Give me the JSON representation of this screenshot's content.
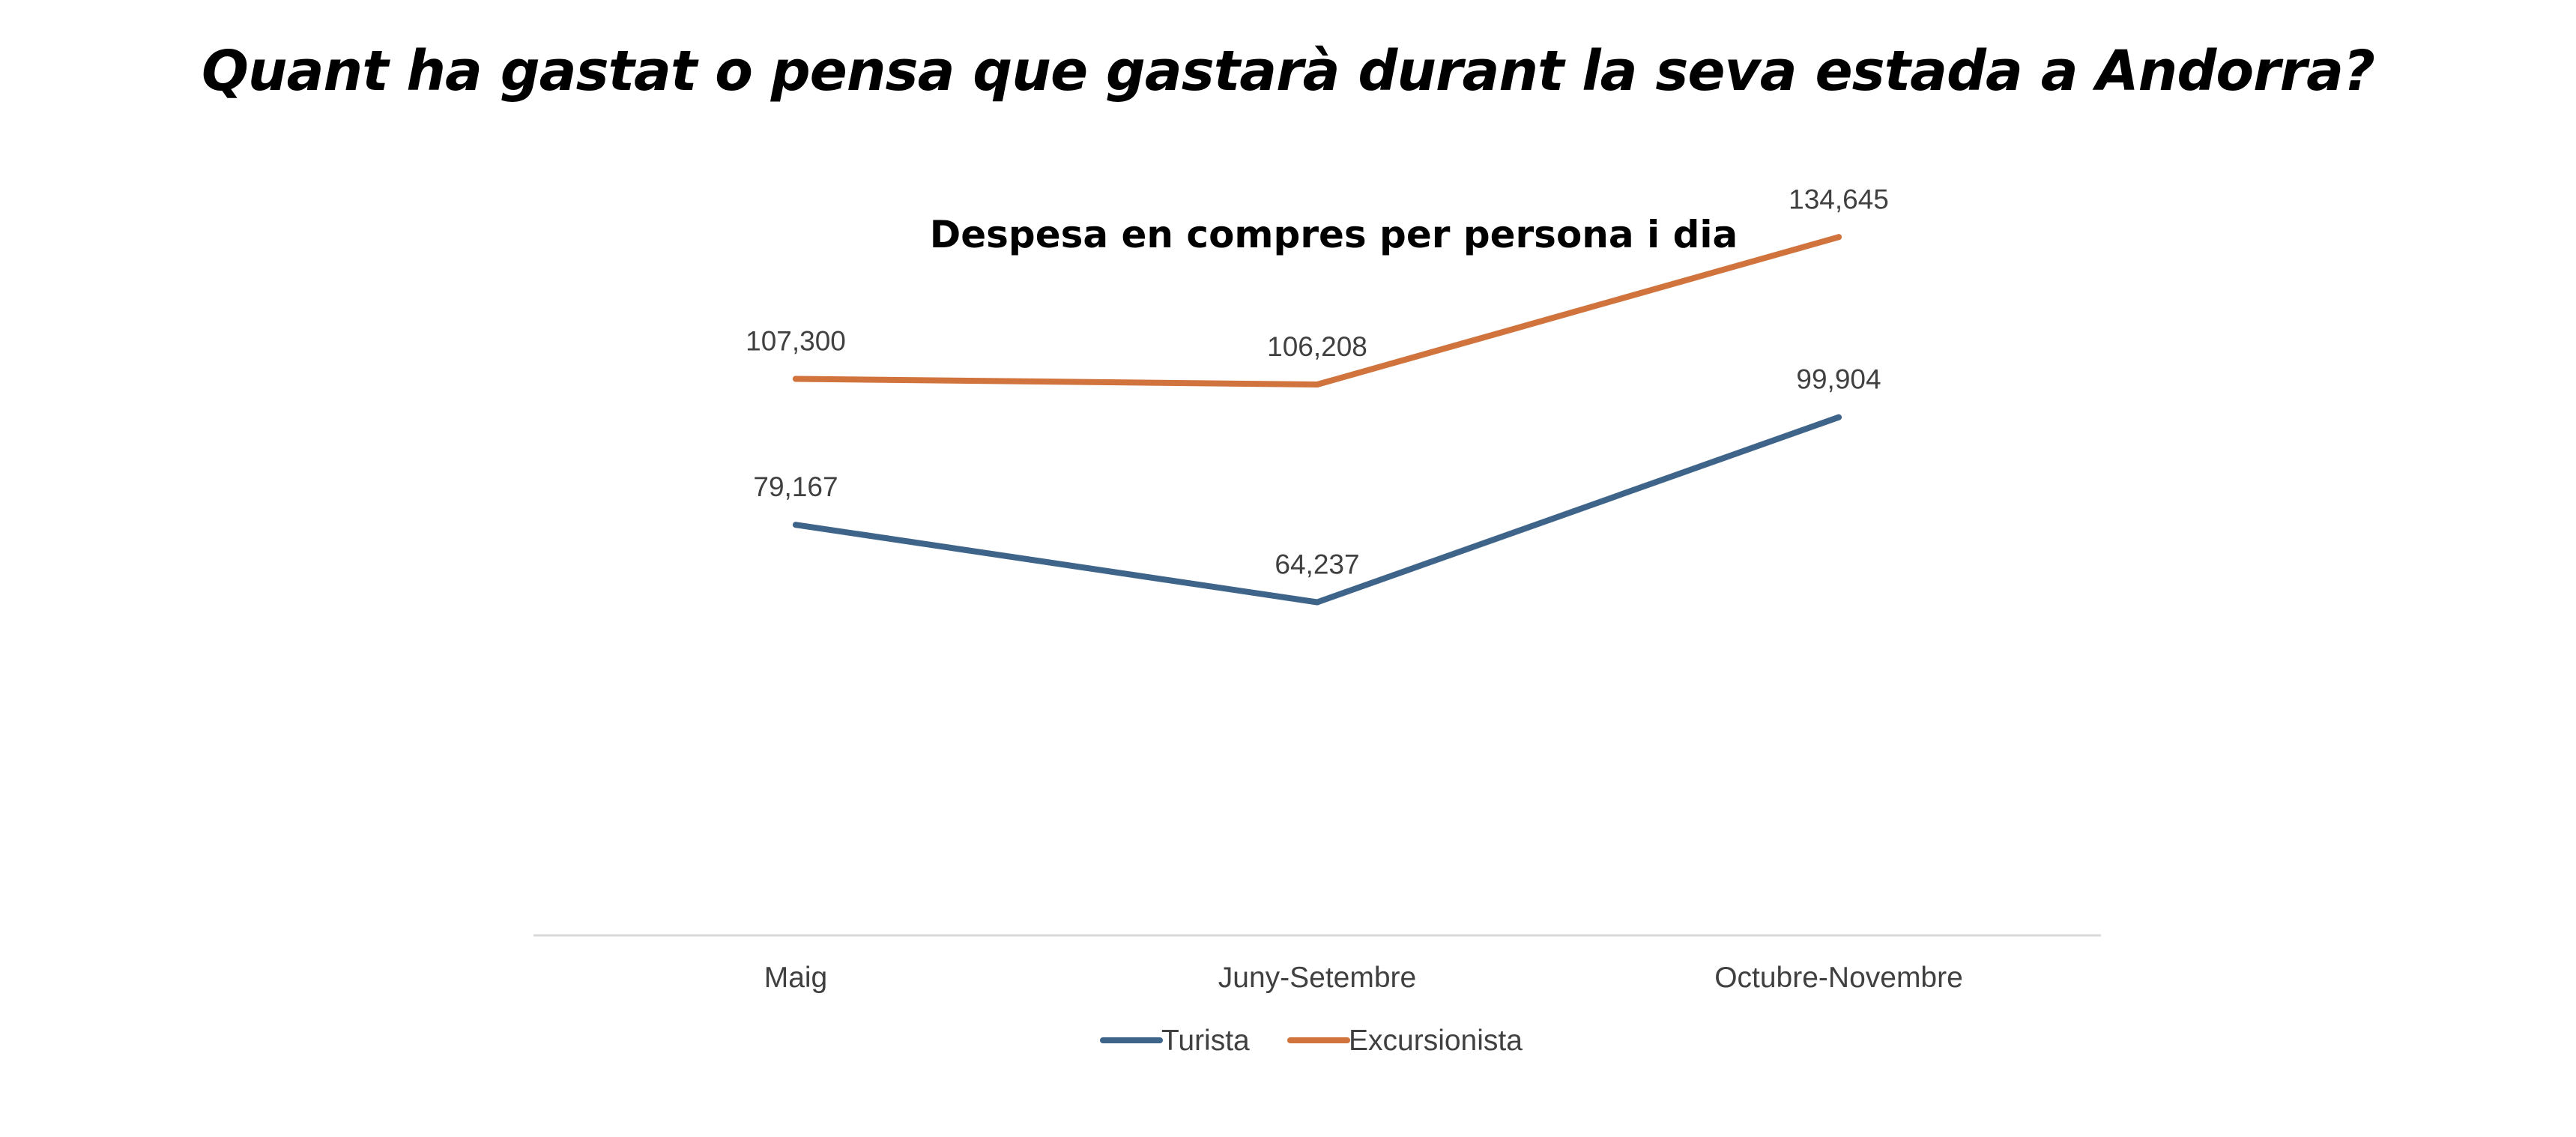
{
  "page": {
    "title": "Quant ha gastat o pensa que gastarà durant la seva estada a Andorra?"
  },
  "chart_data": {
    "type": "line",
    "title": "Despesa en compres per persona i dia",
    "xlabel": "",
    "ylabel": "",
    "categories": [
      "Maig",
      "Juny-Setembre",
      "Octubre-Novembre"
    ],
    "series": [
      {
        "name": "Turista",
        "color": "#3f6489",
        "values": [
          79.167,
          64.237,
          99.904
        ],
        "labels": [
          "79,167",
          "64,237",
          "99,904"
        ]
      },
      {
        "name": "Excursionista",
        "color": "#d1733d",
        "values": [
          107.3,
          106.208,
          134.645
        ],
        "labels": [
          "107,300",
          "106,208",
          "134,645"
        ]
      }
    ],
    "ylim": [
      0,
      150
    ],
    "grid": false,
    "axis_color": "#d9d9d9",
    "legend_position": "bottom"
  }
}
